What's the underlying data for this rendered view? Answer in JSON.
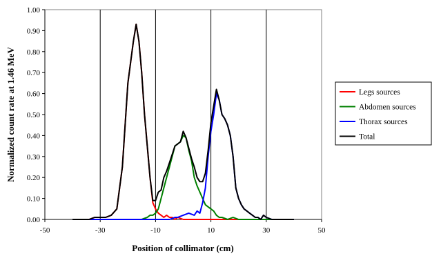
{
  "chart_data": {
    "type": "line",
    "title": "",
    "xlabel": "Position of collimator (cm)",
    "ylabel": "Normalized count rate at 1.46 MeV",
    "xlim": [
      -50,
      50
    ],
    "ylim": [
      0,
      1
    ],
    "xticks": [
      -50,
      -30,
      -10,
      10,
      30,
      50
    ],
    "yticks": [
      0,
      0.1,
      0.2,
      0.3,
      0.4,
      0.5,
      0.6,
      0.7,
      0.8,
      0.9,
      1.0
    ],
    "xtick_labels": [
      "-50",
      "-30",
      "-10",
      "10",
      "30",
      "50"
    ],
    "ytick_labels": [
      "0.00",
      "0.10",
      "0.20",
      "0.30",
      "0.40",
      "0.50",
      "0.60",
      "0.70",
      "0.80",
      "0.90",
      "1.00"
    ],
    "grid": "vertical gridlines at x ticks",
    "legend_position": "right",
    "series": [
      {
        "name": "Legs sources",
        "color": "#ff0000",
        "x": [
          -40,
          -37,
          -34,
          -32,
          -30,
          -28,
          -26,
          -24,
          -22,
          -20,
          -18,
          -17,
          -16,
          -15,
          -14,
          -13,
          -12,
          -11,
          -10,
          -9,
          -8,
          -7,
          -6,
          -5,
          -4,
          -3,
          -2,
          0,
          5,
          10,
          20,
          30,
          40
        ],
        "y": [
          0.0,
          0.0,
          0.0,
          0.01,
          0.01,
          0.01,
          0.02,
          0.05,
          0.25,
          0.65,
          0.85,
          0.93,
          0.85,
          0.7,
          0.5,
          0.35,
          0.2,
          0.08,
          0.05,
          0.03,
          0.02,
          0.01,
          0.02,
          0.01,
          0.01,
          0.0,
          0.01,
          0.0,
          0.0,
          0.0,
          0.0,
          0.0,
          0.0
        ]
      },
      {
        "name": "Abdomen sources",
        "color": "#008000",
        "x": [
          -40,
          -20,
          -15,
          -13,
          -12,
          -11,
          -10,
          -9,
          -8,
          -7,
          -6,
          -5,
          -4,
          -3,
          -2,
          -1,
          0,
          1,
          2,
          3,
          4,
          5,
          6,
          7,
          8,
          9,
          10,
          11,
          12,
          13,
          14,
          16,
          18,
          20,
          25,
          30,
          40
        ],
        "y": [
          0.0,
          0.0,
          0.0,
          0.01,
          0.02,
          0.02,
          0.03,
          0.05,
          0.1,
          0.15,
          0.2,
          0.25,
          0.3,
          0.35,
          0.36,
          0.37,
          0.4,
          0.39,
          0.33,
          0.28,
          0.2,
          0.16,
          0.13,
          0.1,
          0.07,
          0.06,
          0.05,
          0.04,
          0.02,
          0.01,
          0.01,
          0.0,
          0.01,
          0.0,
          0.0,
          0.0,
          0.0
        ]
      },
      {
        "name": "Thorax sources",
        "color": "#0000ff",
        "x": [
          -40,
          -10,
          -5,
          -3,
          -2,
          0,
          2,
          4,
          5,
          6,
          7,
          8,
          9,
          10,
          11,
          12,
          13,
          14,
          15,
          16,
          17,
          18,
          19,
          20,
          21,
          22,
          23,
          24,
          25,
          26,
          27,
          28,
          29,
          30,
          32,
          35,
          40
        ],
        "y": [
          0.0,
          0.0,
          0.0,
          0.01,
          0.01,
          0.02,
          0.03,
          0.02,
          0.04,
          0.03,
          0.08,
          0.15,
          0.3,
          0.42,
          0.5,
          0.6,
          0.57,
          0.5,
          0.48,
          0.45,
          0.4,
          0.3,
          0.15,
          0.1,
          0.07,
          0.05,
          0.04,
          0.03,
          0.02,
          0.01,
          0.01,
          0.0,
          0.02,
          0.01,
          0.0,
          0.0,
          0.0
        ]
      },
      {
        "name": "Total",
        "color": "#000000",
        "x": [
          -40,
          -37,
          -34,
          -32,
          -30,
          -28,
          -26,
          -24,
          -22,
          -20,
          -18,
          -17,
          -16,
          -15,
          -14,
          -13,
          -12,
          -11,
          -10,
          -9,
          -8,
          -7,
          -6,
          -5,
          -4,
          -3,
          -2,
          -1,
          0,
          1,
          2,
          3,
          4,
          5,
          6,
          7,
          8,
          9,
          10,
          11,
          12,
          13,
          14,
          15,
          16,
          17,
          18,
          19,
          20,
          21,
          22,
          23,
          24,
          25,
          26,
          27,
          28,
          29,
          30,
          32,
          35,
          37,
          40
        ],
        "y": [
          0.0,
          0.0,
          0.0,
          0.01,
          0.01,
          0.01,
          0.02,
          0.05,
          0.25,
          0.65,
          0.85,
          0.93,
          0.85,
          0.7,
          0.5,
          0.35,
          0.2,
          0.09,
          0.09,
          0.13,
          0.14,
          0.2,
          0.23,
          0.27,
          0.31,
          0.35,
          0.36,
          0.37,
          0.42,
          0.39,
          0.34,
          0.29,
          0.25,
          0.2,
          0.18,
          0.18,
          0.22,
          0.33,
          0.46,
          0.54,
          0.62,
          0.57,
          0.5,
          0.48,
          0.45,
          0.4,
          0.3,
          0.15,
          0.1,
          0.07,
          0.05,
          0.04,
          0.03,
          0.02,
          0.01,
          0.01,
          0.0,
          0.02,
          0.01,
          0.0,
          0.0,
          0.0,
          0.0
        ]
      }
    ]
  }
}
